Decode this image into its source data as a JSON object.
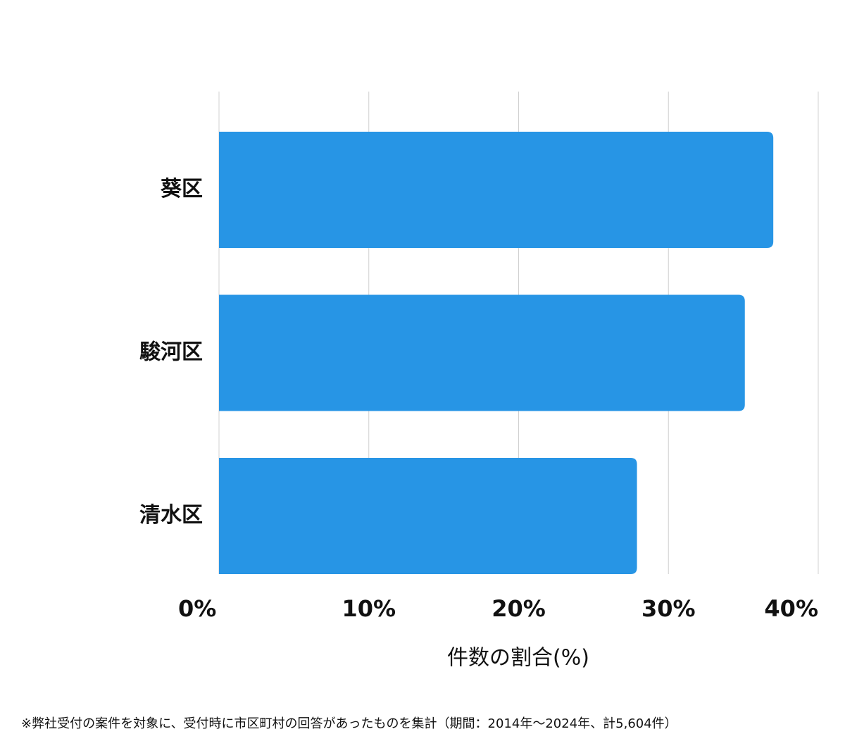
{
  "chart_data": {
    "type": "barh",
    "categories": [
      "葵区",
      "駿河区",
      "清水区"
    ],
    "values": [
      37.0,
      35.1,
      27.9
    ],
    "color": "#2795e5",
    "xlim": [
      0,
      40
    ],
    "xticks": [
      {
        "value": 0,
        "label": "0%"
      },
      {
        "value": 10,
        "label": "10%"
      },
      {
        "value": 20,
        "label": "20%"
      },
      {
        "value": 30,
        "label": "30%"
      },
      {
        "value": 40,
        "label": "40%"
      }
    ],
    "grid": true,
    "xlabel": "件数の割合(%)"
  },
  "footnote": "※弊社受付の案件を対象に、受付時に市区町村の回答があったものを集計（期間：2014年〜2024年、計5,604件）"
}
